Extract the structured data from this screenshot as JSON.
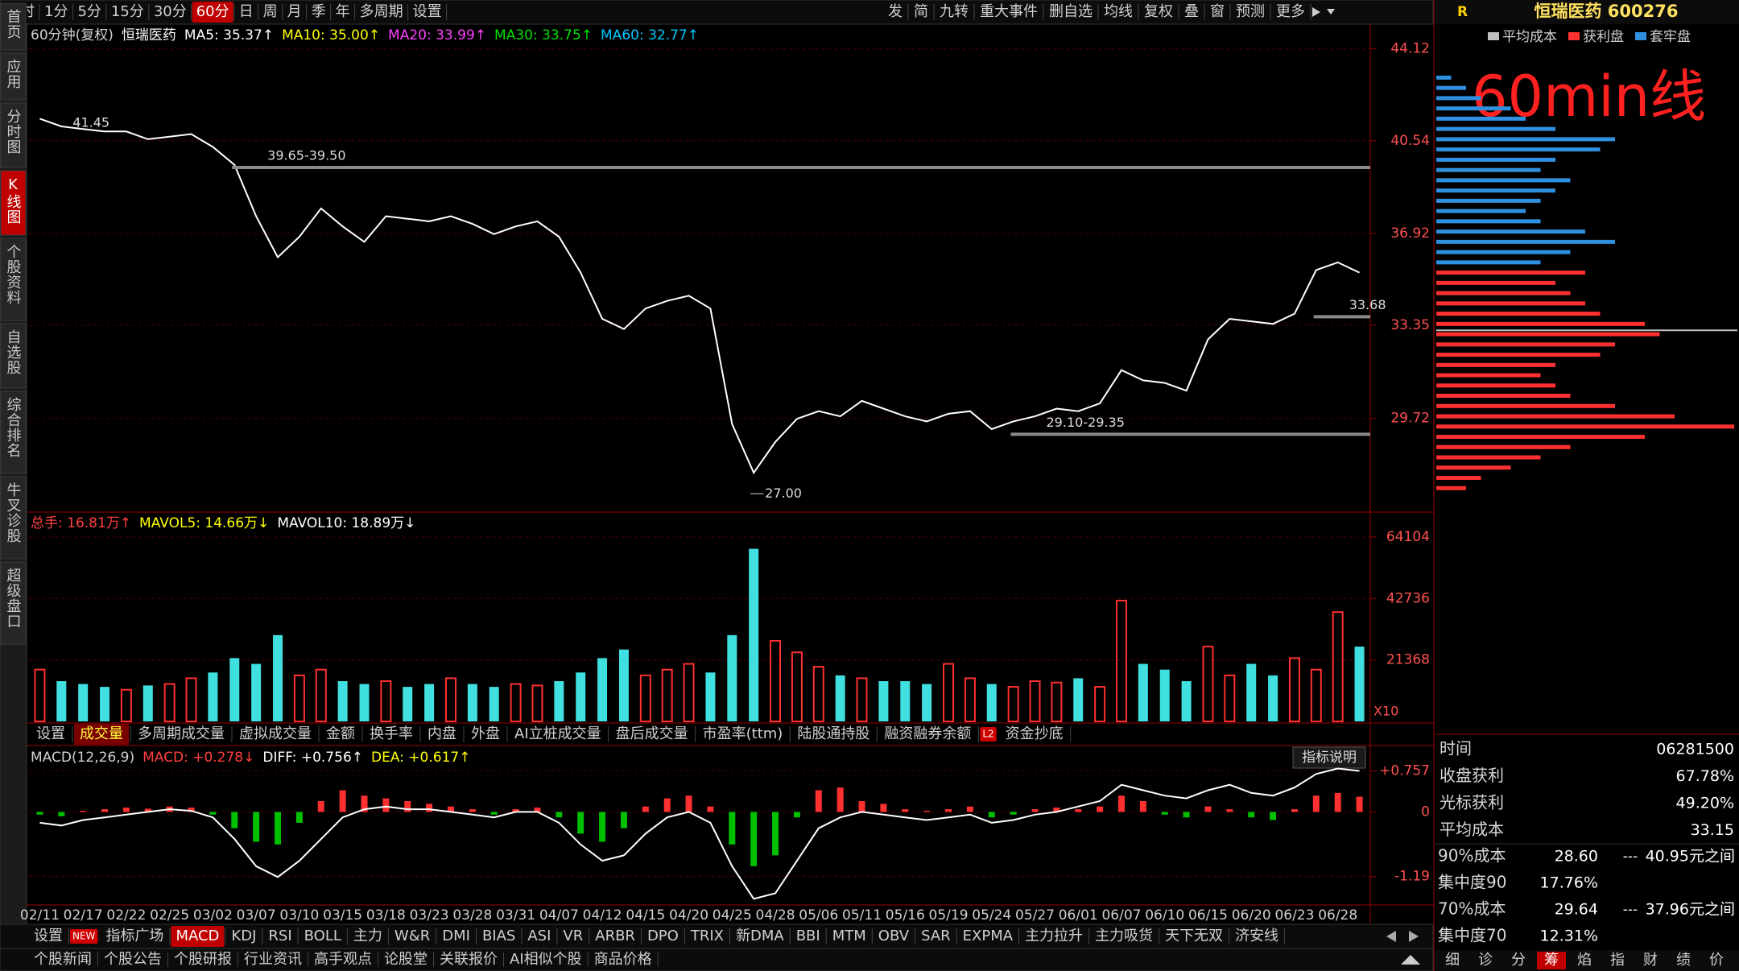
{
  "toolbar": {
    "periods": [
      "分时",
      "1分",
      "5分",
      "15分",
      "30分",
      "60分",
      "日",
      "周",
      "月",
      "季",
      "年",
      "多周期",
      "设置"
    ],
    "selected": "60分",
    "actions": [
      "发",
      "简",
      "九转",
      "重大事件",
      "删自选",
      "均线",
      "复权",
      "叠",
      "窗",
      "预测",
      "更多"
    ]
  },
  "sidebar": {
    "items": [
      "首页",
      "应用",
      "分时图",
      "K线图",
      "个股资料",
      "自选股",
      "综合排名",
      "牛叉诊股",
      "超级盘口"
    ],
    "selected": "K线图"
  },
  "overlay_label": "60min线",
  "chart_data": [
    {
      "type": "line",
      "title": "60分钟(复权)",
      "stock_name": "恒瑞医药",
      "legend": [
        {
          "label": "MA5: 35.37↑",
          "color": "#ffffff"
        },
        {
          "label": "MA10: 35.00↑",
          "color": "#ffff00"
        },
        {
          "label": "MA20: 33.99↑",
          "color": "#ff40ff"
        },
        {
          "label": "MA30: 33.75↑",
          "color": "#00e000"
        },
        {
          "label": "MA60: 32.77↑",
          "color": "#00c8ff"
        }
      ],
      "values": [
        41.4,
        41.1,
        41.0,
        40.9,
        40.9,
        40.6,
        40.7,
        40.8,
        40.3,
        39.6,
        37.6,
        36.0,
        36.8,
        37.9,
        37.2,
        36.6,
        37.6,
        37.5,
        37.4,
        37.6,
        37.3,
        36.9,
        37.2,
        37.4,
        36.8,
        35.4,
        33.6,
        33.2,
        34.0,
        34.3,
        34.5,
        34.0,
        29.5,
        27.6,
        28.8,
        29.7,
        30.0,
        29.8,
        30.4,
        30.1,
        29.8,
        29.6,
        29.9,
        30.0,
        29.3,
        29.6,
        29.8,
        30.1,
        30.0,
        30.3,
        31.6,
        31.2,
        31.1,
        30.8,
        32.8,
        33.6,
        33.5,
        33.4,
        33.8,
        35.5,
        35.8,
        35.4
      ],
      "color": "#ffffff",
      "ylim": [
        26.13,
        44.3
      ],
      "yticks": [
        44.12,
        40.54,
        36.92,
        33.35,
        29.72
      ],
      "grid": true,
      "annotations": [
        {
          "value": 41.45,
          "index": 1
        },
        {
          "label": "39.65-39.50",
          "value": 39.5,
          "index": 10,
          "line": true
        },
        {
          "label": "27.00",
          "value": 27,
          "index": 33
        },
        {
          "label": "29.10-29.35",
          "value": 29.1,
          "index": 46,
          "line": true
        },
        {
          "value": 33.68,
          "index": 60,
          "line": true
        }
      ]
    },
    {
      "type": "bar",
      "legend": [
        {
          "label": "总手: 16.81万↑",
          "color": "#ff4040"
        },
        {
          "label": "MAVOL5: 14.66万↓",
          "color": "#ffff00"
        },
        {
          "label": "MAVOL10: 18.89万↓",
          "color": "#ffffff"
        }
      ],
      "values": [
        18000,
        14000,
        13000,
        12000,
        11000,
        12500,
        13000,
        15000,
        17000,
        22000,
        20000,
        30000,
        16000,
        18000,
        14000,
        13000,
        14000,
        12000,
        13000,
        15000,
        13000,
        12000,
        13000,
        12500,
        14000,
        17000,
        22000,
        25000,
        16000,
        18000,
        20000,
        17000,
        30000,
        60000,
        28000,
        24000,
        19000,
        16000,
        15000,
        14000,
        14000,
        13000,
        20000,
        15000,
        13000,
        12000,
        14000,
        13500,
        15000,
        12000,
        42000,
        20000,
        18000,
        14000,
        26000,
        16000,
        20000,
        16000,
        22000,
        18000,
        38000,
        26000
      ],
      "up_color": "#ff3030",
      "down_color": "#40e0e0",
      "ylim": [
        0,
        68850
      ],
      "yticks": [
        64104,
        42736,
        21368
      ],
      "unit": "X10",
      "grid": true
    },
    {
      "type": "macd",
      "title": "MACD(12,26,9)",
      "legend": [
        {
          "label": "MACD: +0.278↓",
          "color": "#ff4040"
        },
        {
          "label": "DIFF: +0.756↑",
          "color": "#ffffff"
        },
        {
          "label": "DEA: +0.617↑",
          "color": "#ffff00"
        }
      ],
      "categories": [
        "02/11",
        null,
        "02/17",
        null,
        "02/22",
        null,
        "02/25",
        null,
        "03/02",
        null,
        "03/07",
        null,
        "03/10",
        null,
        "03/15",
        null,
        "03/18",
        null,
        "03/23",
        null,
        "03/28",
        null,
        "03/31",
        null,
        "04/07",
        null,
        "04/12",
        null,
        "04/15",
        null,
        "04/20",
        null,
        "04/25",
        null,
        "04/28",
        null,
        "05/06",
        null,
        "05/11",
        null,
        "05/16",
        null,
        "05/19",
        null,
        "05/24",
        null,
        "05/27",
        null,
        "06/01",
        null,
        "06/07",
        null,
        "06/10",
        null,
        "06/15",
        null,
        "06/20",
        null,
        "06/23",
        null,
        "06/28",
        null
      ],
      "values": [
        -0.05,
        -0.08,
        0.02,
        0.05,
        0.08,
        0.06,
        0.1,
        0.08,
        -0.05,
        -0.3,
        -0.55,
        -0.6,
        -0.2,
        0.2,
        0.4,
        0.3,
        0.25,
        0.2,
        0.15,
        0.1,
        0.05,
        -0.05,
        0.05,
        0.08,
        -0.1,
        -0.4,
        -0.55,
        -0.3,
        0.1,
        0.25,
        0.3,
        0.1,
        -0.6,
        -1.0,
        -0.8,
        -0.1,
        0.4,
        0.45,
        0.2,
        0.15,
        0.05,
        0.02,
        0.05,
        0.1,
        -0.1,
        -0.05,
        0.05,
        0.08,
        0.05,
        0.1,
        0.3,
        0.2,
        -0.05,
        -0.1,
        0.1,
        0.05,
        -0.1,
        -0.15,
        0.05,
        0.3,
        0.35,
        0.28
      ],
      "diff": [
        -0.2,
        -0.25,
        -0.15,
        -0.1,
        -0.05,
        0,
        0.05,
        0.02,
        -0.1,
        -0.5,
        -1.0,
        -1.2,
        -0.9,
        -0.5,
        -0.1,
        0.05,
        0.1,
        0.05,
        0.05,
        0,
        -0.05,
        -0.1,
        0,
        0,
        -0.2,
        -0.6,
        -0.9,
        -0.8,
        -0.4,
        -0.1,
        0,
        -0.2,
        -1.0,
        -1.6,
        -1.5,
        -0.9,
        -0.3,
        -0.1,
        0,
        -0.05,
        -0.1,
        -0.15,
        -0.1,
        -0.05,
        -0.2,
        -0.15,
        -0.05,
        0,
        0.1,
        0.2,
        0.5,
        0.4,
        0.3,
        0.25,
        0.4,
        0.5,
        0.35,
        0.3,
        0.45,
        0.7,
        0.8,
        0.756
      ],
      "up_color": "#ff3030",
      "down_color": "#00c000",
      "line_color": "#ffffff",
      "ylim": [
        -1.7,
        1.06
      ],
      "yticks": [
        {
          "value": 0.757,
          "label": "+0.757"
        },
        0,
        -1.19
      ],
      "help": "指标说明"
    }
  ],
  "indicator_tabs": {
    "items": [
      "设置",
      "成交量",
      "多周期成交量",
      "虚拟成交量",
      "金额",
      "换手率",
      "内盘",
      "外盘",
      "AI立桩成交量",
      "盘后成交量",
      "市盈率(ttm)",
      "陆股通持股",
      "融资融券余额",
      {
        "label": "资金抄底",
        "badge": "L2"
      }
    ],
    "selected": "成交量"
  },
  "bottom_tabs": {
    "items": [
      "设置",
      {
        "label": "指标广场",
        "badge": "NEW"
      },
      "MACD",
      "KDJ",
      "RSI",
      "BOLL",
      "主力",
      "W&R",
      "DMI",
      "BIAS",
      "ASI",
      "VR",
      "ARBR",
      "DPO",
      "TRIX",
      "新DMA",
      "BBI",
      "MTM",
      "OBV",
      "SAR",
      "EXPMA",
      "主力拉升",
      "主力吸货",
      "天下无双",
      "济安线"
    ],
    "selected": "MACD"
  },
  "news_tabs": [
    "个股新闻",
    "个股公告",
    "个股研报",
    "行业资讯",
    "高手观点",
    "论股堂",
    "关联报价",
    "AI相似个股",
    "商品价格"
  ],
  "right_panel": {
    "badge": "R",
    "title": "恒瑞医药 600276",
    "legend": [
      {
        "label": "平均成本",
        "color": "#c0c0c0"
      },
      {
        "label": "获利盘",
        "color": "#ff3030"
      },
      {
        "label": "套牢盘",
        "color": "#3090e0"
      }
    ],
    "chips": {
      "prices": [
        27,
        27.4,
        27.8,
        28.2,
        28.6,
        29,
        29.4,
        29.8,
        30.2,
        30.6,
        31,
        31.4,
        31.8,
        32.2,
        32.6,
        33,
        33.4,
        33.8,
        34.2,
        34.6,
        35,
        35.4,
        35.8,
        36.2,
        36.6,
        37,
        37.4,
        37.8,
        38.2,
        38.6,
        39,
        39.4,
        39.8,
        40.2,
        40.6,
        41,
        41.4,
        41.8,
        42.2,
        42.6,
        43
      ],
      "amounts": [
        10,
        15,
        25,
        35,
        45,
        70,
        100,
        80,
        60,
        45,
        40,
        35,
        40,
        55,
        60,
        75,
        70,
        55,
        50,
        45,
        40,
        50,
        35,
        45,
        60,
        50,
        35,
        30,
        35,
        40,
        45,
        35,
        40,
        55,
        60,
        40,
        30,
        25,
        15,
        10,
        5
      ],
      "xlim": [
        0,
        100
      ]
    },
    "stats": [
      [
        "时间",
        "06281500"
      ],
      [
        "收盘获利",
        "67.78%"
      ],
      [
        "光标获利",
        "49.20%"
      ],
      [
        "平均成本",
        33.15
      ]
    ],
    "ranges": [
      [
        "90%成本",
        "28.60",
        "---",
        "40.95元之间"
      ],
      [
        "集中度90",
        "17.76%"
      ],
      [
        "70%成本",
        "29.64",
        "---",
        "37.96元之间"
      ],
      [
        "集中度70",
        "12.31%"
      ]
    ],
    "tabs": [
      "细",
      "诊",
      "分",
      "筹",
      "焰",
      "指",
      "财",
      "绩",
      "价"
    ],
    "selected_tab": "筹"
  }
}
